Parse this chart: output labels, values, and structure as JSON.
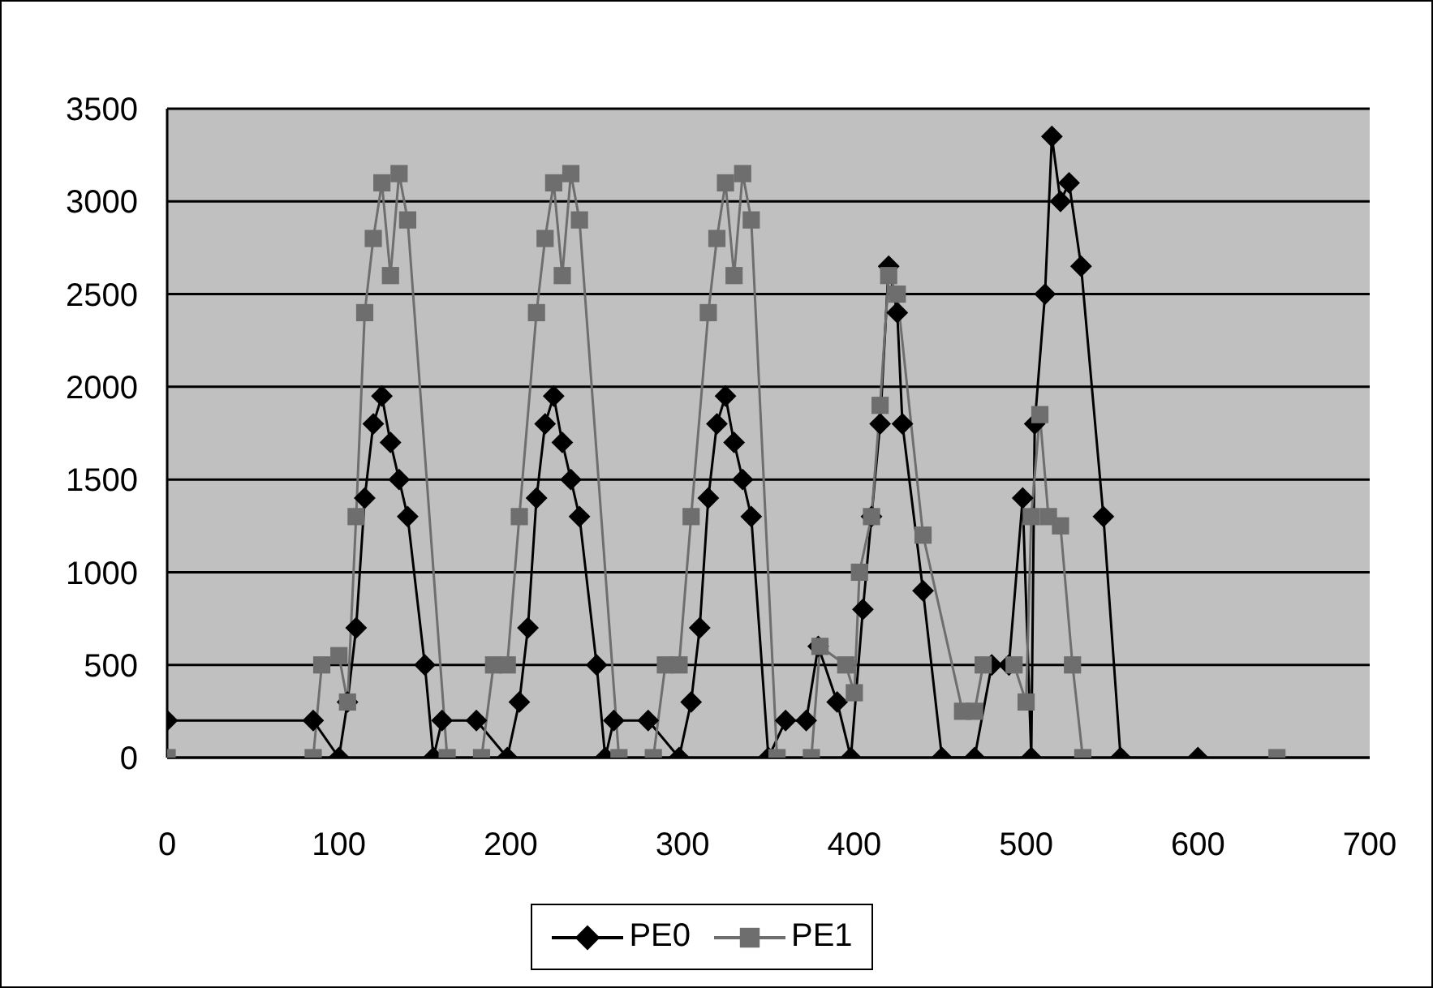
{
  "chart_data": {
    "type": "line",
    "xlim": [
      0,
      700
    ],
    "xticks": [
      0,
      100,
      200,
      300,
      400,
      500,
      600,
      700
    ],
    "ylim": [
      0,
      3500
    ],
    "yticks": [
      0,
      500,
      1000,
      1500,
      2000,
      2500,
      3000,
      3500
    ],
    "grid": "y",
    "legend": "bottom",
    "series": [
      {
        "name": "PE0",
        "color": "#000000",
        "marker": "diamond",
        "x": [
          0,
          85,
          100,
          105,
          110,
          115,
          120,
          125,
          130,
          135,
          140,
          150,
          155,
          160,
          180,
          198,
          205,
          210,
          215,
          220,
          225,
          230,
          235,
          240,
          250,
          255,
          260,
          280,
          298,
          305,
          310,
          315,
          320,
          325,
          330,
          335,
          340,
          350,
          360,
          372,
          379,
          390,
          398,
          405,
          410,
          415,
          420,
          425,
          428,
          440,
          451,
          470,
          480,
          490,
          498,
          503,
          505,
          511,
          515,
          520,
          525,
          532,
          545,
          555,
          600
        ],
        "values": [
          200,
          200,
          0,
          300,
          700,
          1400,
          1800,
          1950,
          1700,
          1500,
          1300,
          500,
          0,
          200,
          200,
          0,
          300,
          700,
          1400,
          1800,
          1950,
          1700,
          1500,
          1300,
          500,
          0,
          200,
          200,
          0,
          300,
          700,
          1400,
          1800,
          1950,
          1700,
          1500,
          1300,
          0,
          200,
          200,
          600,
          300,
          0,
          800,
          1300,
          1800,
          2650,
          2400,
          1800,
          900,
          0,
          0,
          500,
          500,
          1400,
          0,
          1800,
          2500,
          3350,
          3000,
          3100,
          2650,
          1300,
          0,
          0
        ]
      },
      {
        "name": "PE1",
        "color": "#6e6e6e",
        "marker": "square",
        "x": [
          0,
          85,
          90,
          100,
          105,
          110,
          115,
          120,
          125,
          130,
          135,
          140,
          163,
          183,
          190,
          198,
          205,
          215,
          220,
          225,
          230,
          235,
          240,
          263,
          283,
          290,
          298,
          305,
          315,
          320,
          325,
          330,
          335,
          340,
          355,
          375,
          380,
          395,
          400,
          403,
          410,
          415,
          420,
          425,
          440,
          463,
          470,
          475,
          493,
          500,
          503,
          508,
          513,
          520,
          527,
          533,
          646
        ],
        "values": [
          0,
          0,
          500,
          550,
          300,
          1300,
          2400,
          2800,
          3100,
          2600,
          3150,
          2900,
          0,
          0,
          500,
          500,
          1300,
          2400,
          2800,
          3100,
          2600,
          3150,
          2900,
          0,
          0,
          500,
          500,
          1300,
          2400,
          2800,
          3100,
          2600,
          3150,
          2900,
          0,
          0,
          600,
          500,
          350,
          1000,
          1300,
          1900,
          2600,
          2500,
          1200,
          250,
          250,
          500,
          500,
          300,
          1300,
          1850,
          1300,
          1250,
          500,
          0,
          0
        ]
      }
    ]
  }
}
